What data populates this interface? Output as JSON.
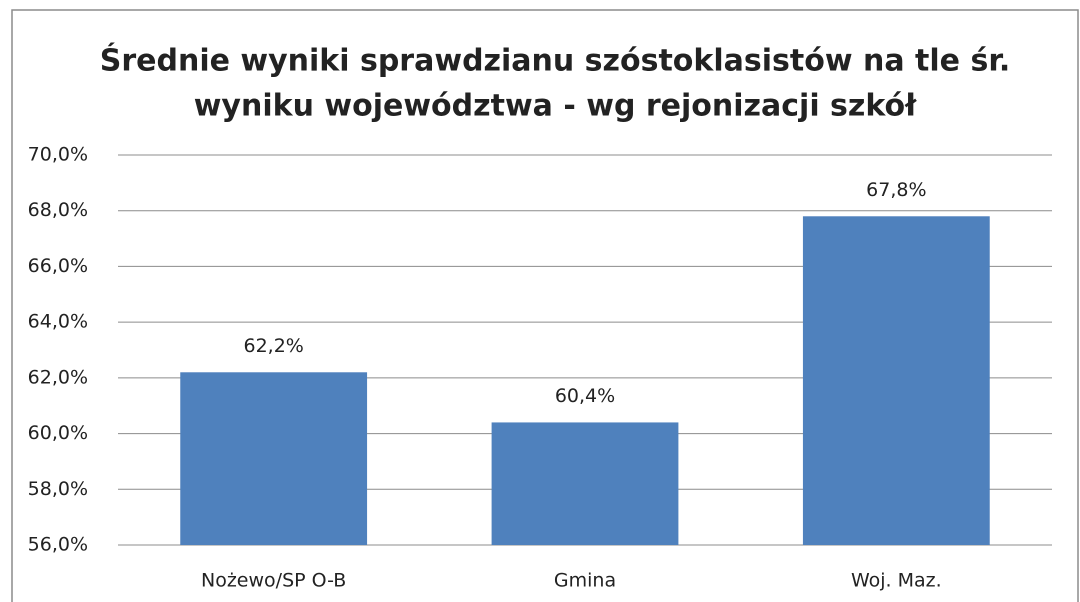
{
  "chart_data": {
    "type": "bar",
    "title": [
      "Średnie wyniki sprawdzianu szóstoklasistów na tle śr.",
      "wyniku województwa - wg rejonizacji szkół"
    ],
    "categories": [
      "Nożewo/SP O-B",
      "Gmina",
      "Woj. Maz."
    ],
    "values": [
      62.2,
      60.4,
      67.8
    ],
    "value_labels": [
      "62,2%",
      "60,4%",
      "67,8%"
    ],
    "color": "#4f81bd",
    "ylim": [
      56,
      70
    ],
    "yticks": [
      {
        "value": 56,
        "label": "56,0%"
      },
      {
        "value": 58,
        "label": "58,0%"
      },
      {
        "value": 60,
        "label": "60,0%"
      },
      {
        "value": 62,
        "label": "62,0%"
      },
      {
        "value": 64,
        "label": "64,0%"
      },
      {
        "value": 66,
        "label": "66,0%"
      },
      {
        "value": 68,
        "label": "68,0%"
      },
      {
        "value": 70,
        "label": "70,0%"
      }
    ],
    "grid": true
  }
}
